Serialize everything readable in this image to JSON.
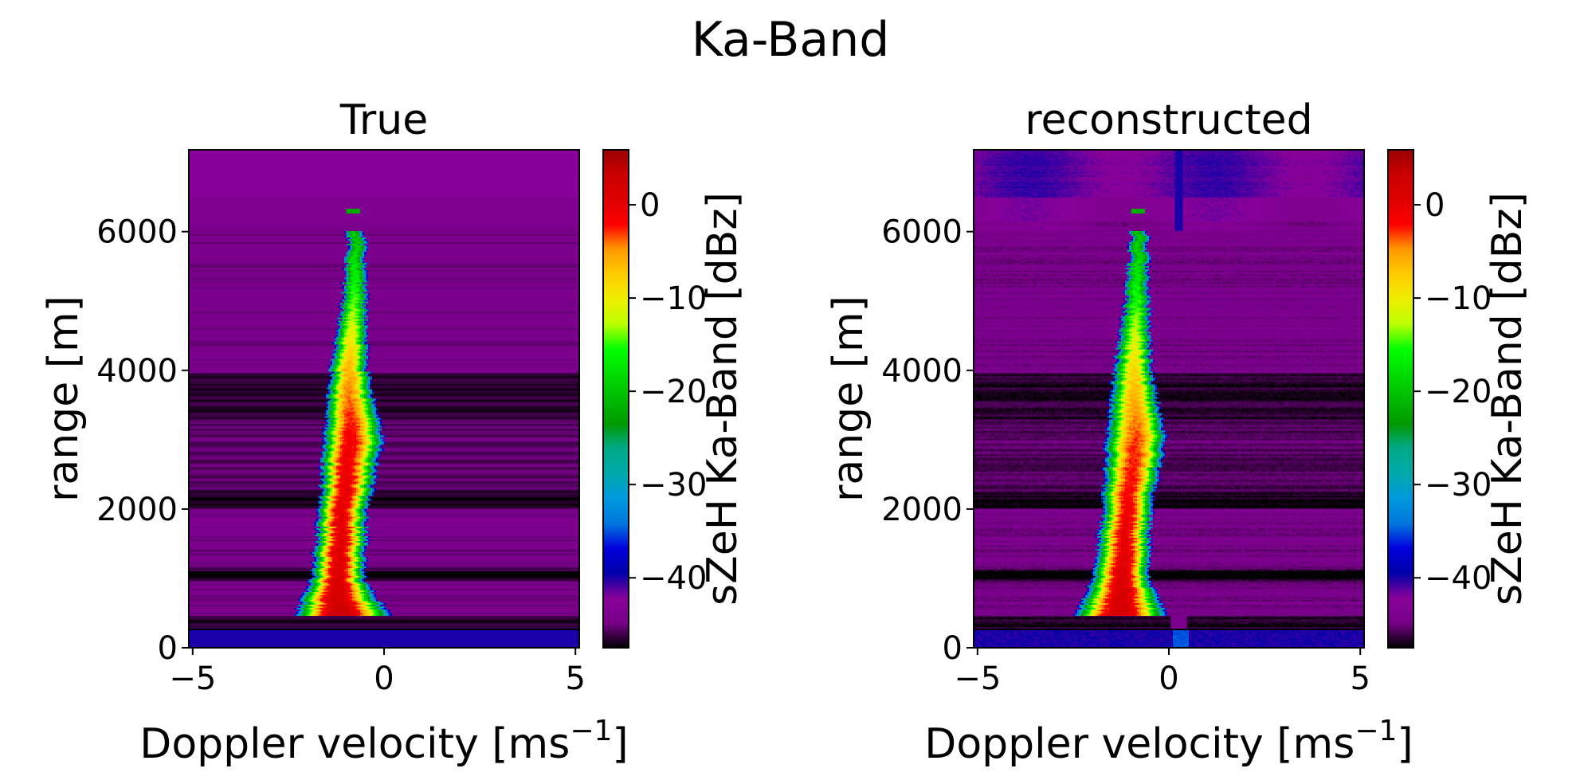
{
  "chart_data": [
    {
      "type": "heatmap",
      "suptitle": "Ka-Band",
      "title": "True",
      "xlabel": {
        "text": "Doppler velocity [ms",
        "sup": "−1",
        "close": "]"
      },
      "ylabel": "range [m]",
      "xlim": [
        -5.1,
        5.1
      ],
      "ylim": [
        0,
        7180
      ],
      "xticks": [
        -5,
        0,
        5
      ],
      "xtick_labels": [
        "−5",
        "0",
        "5"
      ],
      "yticks": [
        0,
        2000,
        4000,
        6000
      ],
      "ytick_labels": [
        "0",
        "2000",
        "4000",
        "6000"
      ],
      "colorbar": {
        "label": "sZeH Ka-Band [dBz]",
        "colormap": "nipy_spectral",
        "range": [
          -47.5,
          5.9
        ],
        "ticks": [
          0,
          -10,
          -20,
          -30,
          -40
        ],
        "tick_labels": [
          "0",
          "−10",
          "−20",
          "−30",
          "−40"
        ]
      },
      "spectrum_ridge": {
        "range_m": [
          450,
          1000,
          2000,
          3000,
          4000,
          5000,
          6000
        ],
        "center_velocity": [
          -1.2,
          -1.2,
          -1.1,
          -0.9,
          -0.9,
          -0.8,
          -0.75
        ],
        "left_edge_velocity": [
          -2.4,
          -1.9,
          -1.7,
          -1.6,
          -1.4,
          -1.1,
          -0.95
        ],
        "right_edge_velocity": [
          0.2,
          -0.5,
          -0.4,
          0.0,
          -0.4,
          -0.45,
          -0.5
        ],
        "peak_dbz": [
          3,
          1,
          0,
          -1,
          -6,
          -14,
          -20
        ]
      },
      "background_dbz": -44.5
    },
    {
      "type": "heatmap",
      "title": "reconstructed",
      "xlabel": {
        "text": "Doppler velocity [ms",
        "sup": "−1",
        "close": "]"
      },
      "ylabel": "range [m]",
      "xlim": [
        -5.1,
        5.1
      ],
      "ylim": [
        0,
        7180
      ],
      "xticks": [
        -5,
        0,
        5
      ],
      "xtick_labels": [
        "−5",
        "0",
        "5"
      ],
      "yticks": [
        0,
        2000,
        4000,
        6000
      ],
      "ytick_labels": [
        "0",
        "2000",
        "4000",
        "6000"
      ],
      "colorbar": {
        "label": "sZeH Ka-Band [dBz]",
        "colormap": "nipy_spectral",
        "range": [
          -47.5,
          5.9
        ],
        "ticks": [
          0,
          -10,
          -20,
          -30,
          -40
        ],
        "tick_labels": [
          "0",
          "−10",
          "−20",
          "−30",
          "−40"
        ]
      },
      "spectrum_ridge": {
        "range_m": [
          450,
          1000,
          2000,
          3000,
          4000,
          5000,
          6000
        ],
        "center_velocity": [
          -1.3,
          -1.2,
          -1.1,
          -0.85,
          -0.9,
          -0.85,
          -0.8
        ],
        "left_edge_velocity": [
          -2.5,
          -2.0,
          -1.75,
          -1.65,
          -1.45,
          -1.15,
          -1.0
        ],
        "right_edge_velocity": [
          0.0,
          -0.5,
          -0.45,
          -0.05,
          -0.45,
          -0.5,
          -0.55
        ],
        "peak_dbz": [
          2,
          1,
          -1,
          -3,
          -8,
          -15,
          -20
        ]
      },
      "background_dbz": -44.5
    }
  ]
}
